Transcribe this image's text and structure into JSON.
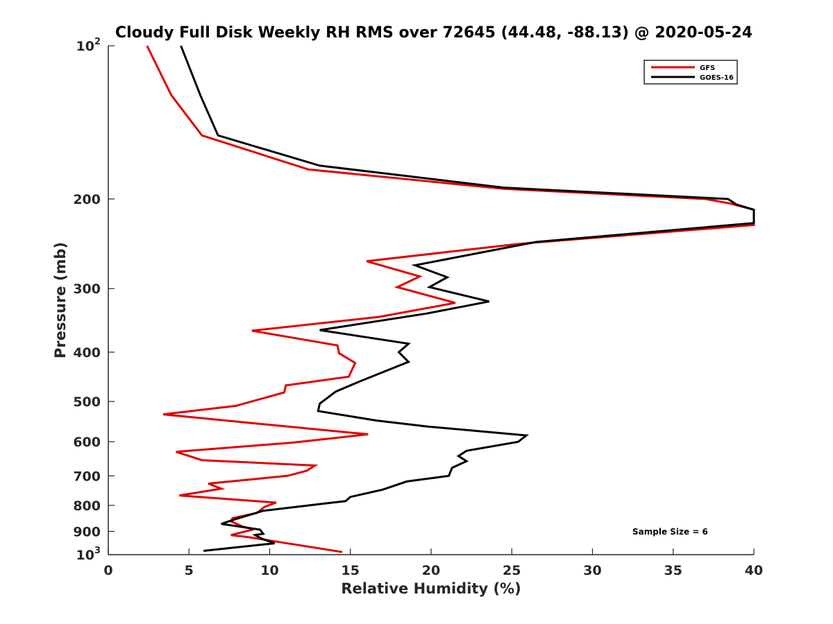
{
  "chart_data": {
    "type": "line",
    "title": "Cloudy Full Disk Weekly RH RMS over 72645 (44.48, -88.13) @ 2020-05-24",
    "xlabel": "Relative Humidity (%)",
    "ylabel": "Pressure (mb)",
    "xlim": [
      0,
      40
    ],
    "ylim": [
      100,
      1000
    ],
    "y_scale": "log",
    "y_reversed": true,
    "x_ticks": [
      "0",
      "5",
      "10",
      "15",
      "20",
      "25",
      "30",
      "35",
      "40"
    ],
    "y_ticks": [
      {
        "value": 100,
        "base": "10",
        "exp": "2"
      },
      {
        "value": 200,
        "label": "200"
      },
      {
        "value": 300,
        "label": "300"
      },
      {
        "value": 400,
        "label": "400"
      },
      {
        "value": 500,
        "label": "500"
      },
      {
        "value": 600,
        "label": "600"
      },
      {
        "value": 700,
        "label": "700"
      },
      {
        "value": 800,
        "label": "800"
      },
      {
        "value": 900,
        "label": "900"
      },
      {
        "value": 1000,
        "base": "10",
        "exp": "3"
      }
    ],
    "legend_position": "top-right",
    "series": [
      {
        "name": "GFS",
        "color": "#e00000",
        "points": [
          [
            2.4,
            100
          ],
          [
            3.9,
            125
          ],
          [
            5.8,
            150
          ],
          [
            12.4,
            175
          ],
          [
            24.5,
            191
          ],
          [
            37.0,
            200
          ],
          [
            38.5,
            204
          ],
          [
            40.0,
            210
          ],
          [
            40.0,
            225
          ],
          [
            25.5,
            245
          ],
          [
            16.0,
            265
          ],
          [
            19.3,
            284
          ],
          [
            17.9,
            298
          ],
          [
            21.5,
            320
          ],
          [
            16.8,
            341
          ],
          [
            8.9,
            363
          ],
          [
            14.2,
            388
          ],
          [
            14.3,
            402
          ],
          [
            15.3,
            420
          ],
          [
            14.9,
            447
          ],
          [
            11.0,
            465
          ],
          [
            10.9,
            480
          ],
          [
            7.9,
            510
          ],
          [
            3.4,
            530
          ],
          [
            9.8,
            555
          ],
          [
            16.1,
            580
          ],
          [
            11.5,
            602
          ],
          [
            4.2,
            628
          ],
          [
            5.8,
            652
          ],
          [
            12.8,
            668
          ],
          [
            12.3,
            684
          ],
          [
            11.1,
            700
          ],
          [
            6.2,
            725
          ],
          [
            7.0,
            742
          ],
          [
            4.4,
            765
          ],
          [
            10.4,
            790
          ],
          [
            9.7,
            805
          ],
          [
            9.2,
            828
          ],
          [
            7.7,
            848
          ],
          [
            7.6,
            860
          ],
          [
            8.3,
            880
          ],
          [
            9.0,
            892
          ],
          [
            7.6,
            915
          ],
          [
            8.8,
            925
          ],
          [
            10.2,
            940
          ],
          [
            14.5,
            988
          ]
        ]
      },
      {
        "name": "GOES-16",
        "color": "#000000",
        "points": [
          [
            4.5,
            100
          ],
          [
            5.7,
            125
          ],
          [
            6.8,
            150
          ],
          [
            13.1,
            172
          ],
          [
            24.5,
            190
          ],
          [
            38.4,
            200
          ],
          [
            38.9,
            205
          ],
          [
            40.0,
            210
          ],
          [
            40.0,
            223
          ],
          [
            26.5,
            243
          ],
          [
            19.0,
            270
          ],
          [
            21.0,
            285
          ],
          [
            19.9,
            298
          ],
          [
            23.6,
            318
          ],
          [
            19.7,
            336
          ],
          [
            13.1,
            362
          ],
          [
            18.6,
            385
          ],
          [
            18.0,
            400
          ],
          [
            18.6,
            418
          ],
          [
            15.7,
            455
          ],
          [
            14.1,
            478
          ],
          [
            13.1,
            505
          ],
          [
            13.0,
            522
          ],
          [
            16.6,
            545
          ],
          [
            19.8,
            560
          ],
          [
            25.9,
            583
          ],
          [
            25.4,
            600
          ],
          [
            22.2,
            625
          ],
          [
            21.7,
            640
          ],
          [
            22.2,
            655
          ],
          [
            21.3,
            675
          ],
          [
            21.1,
            700
          ],
          [
            18.5,
            718
          ],
          [
            17.0,
            745
          ],
          [
            15.0,
            770
          ],
          [
            14.7,
            785
          ],
          [
            13.9,
            790
          ],
          [
            9.6,
            820
          ],
          [
            7.8,
            853
          ],
          [
            7.0,
            870
          ],
          [
            9.4,
            893
          ],
          [
            9.6,
            910
          ],
          [
            9.1,
            915
          ],
          [
            9.5,
            930
          ],
          [
            10.3,
            950
          ],
          [
            5.9,
            983
          ]
        ]
      }
    ],
    "annotation": "Sample Size = 6"
  }
}
